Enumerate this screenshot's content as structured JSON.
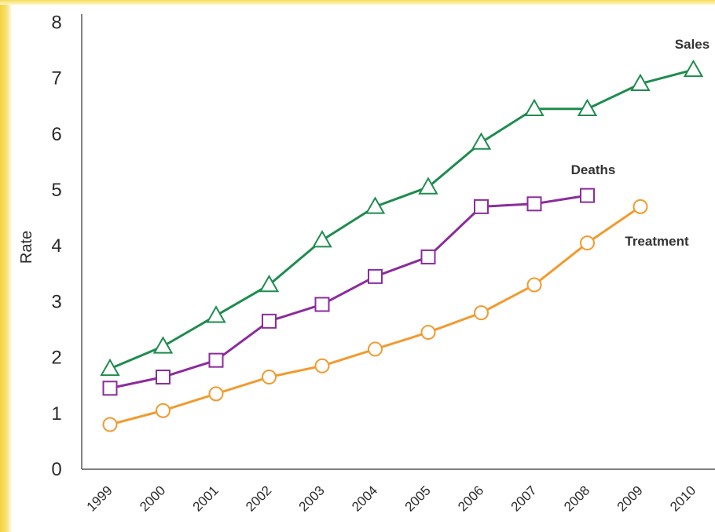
{
  "chart_data": {
    "type": "line",
    "title": "",
    "xlabel": "",
    "ylabel": "Rate",
    "ylim": [
      0,
      8
    ],
    "y_ticks": [
      "0",
      "1",
      "2",
      "3",
      "4",
      "5",
      "6",
      "7",
      "8"
    ],
    "categories": [
      "1999",
      "2000",
      "2001",
      "2002",
      "2003",
      "2004",
      "2005",
      "2006",
      "2007",
      "2008",
      "2009",
      "2010"
    ],
    "grid": false,
    "legend": "none (series labeled directly on lines)",
    "series": [
      {
        "name": "Sales",
        "color": "#1e8c4e",
        "marker": "triangle",
        "values": [
          1.8,
          2.2,
          2.75,
          3.3,
          4.1,
          4.7,
          5.05,
          5.85,
          6.45,
          6.45,
          6.9,
          7.15
        ]
      },
      {
        "name": "Deaths",
        "color": "#8b2c9c",
        "marker": "square",
        "values": [
          1.45,
          1.65,
          1.95,
          2.65,
          2.95,
          3.45,
          3.8,
          4.7,
          4.75,
          4.9,
          null,
          null
        ]
      },
      {
        "name": "Treatment",
        "color": "#f29a2e",
        "marker": "circle",
        "values": [
          0.8,
          1.05,
          1.35,
          1.65,
          1.85,
          2.15,
          2.45,
          2.8,
          3.3,
          4.05,
          4.7,
          null
        ]
      }
    ]
  }
}
